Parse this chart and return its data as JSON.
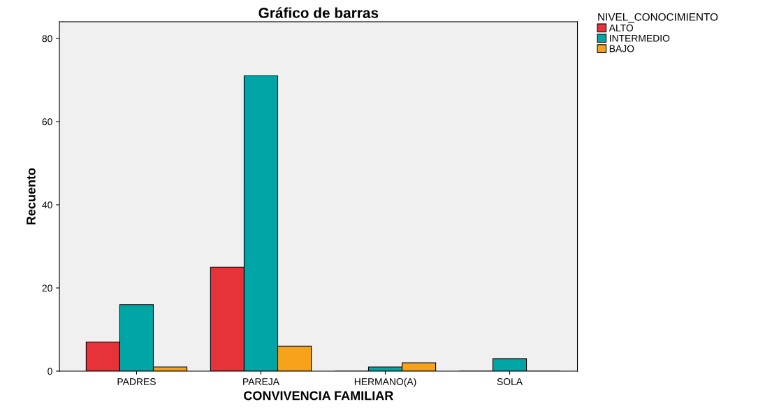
{
  "chart_data": {
    "type": "bar",
    "title": "Gráfico de barras",
    "xlabel": "CONVIVENCIA FAMILIAR",
    "ylabel": "Recuento",
    "legend_title": "NIVEL_CONOCIMIENTO",
    "categories": [
      "PADRES",
      "PAREJA",
      "HERMANO(A)",
      "SOLA"
    ],
    "series": [
      {
        "name": "ALTO",
        "color": "#e8323a",
        "values": [
          7,
          25,
          0,
          0
        ]
      },
      {
        "name": "INTERMEDIO",
        "color": "#00a6a6",
        "values": [
          16,
          71,
          1,
          3
        ]
      },
      {
        "name": "BAJO",
        "color": "#f7a21b",
        "values": [
          1,
          6,
          2,
          0
        ]
      }
    ],
    "ylim": [
      0,
      84
    ],
    "yticks": [
      0,
      20,
      40,
      60,
      80
    ],
    "grid": false,
    "legend": "top right"
  }
}
